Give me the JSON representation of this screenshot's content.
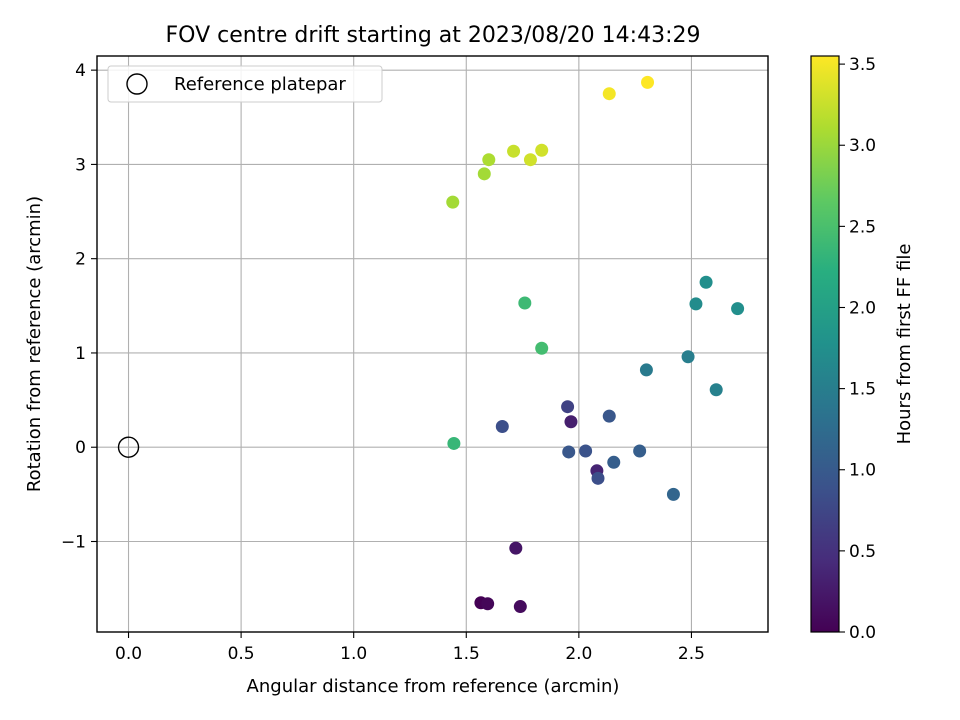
{
  "chart_data": {
    "type": "scatter",
    "title": "FOV centre drift starting at 2023/08/20 14:43:29",
    "xlabel": "Angular distance from reference (arcmin)",
    "ylabel": "Rotation from reference (arcmin)",
    "xlim": [
      -0.14,
      2.84
    ],
    "ylim": [
      -1.96,
      4.15
    ],
    "xticks": [
      0.0,
      0.5,
      1.0,
      1.5,
      2.0,
      2.5
    ],
    "xtick_labels": [
      "0.0",
      "0.5",
      "1.0",
      "1.5",
      "2.0",
      "2.5"
    ],
    "yticks": [
      -1,
      0,
      1,
      2,
      3,
      4
    ],
    "ytick_labels": [
      "−1",
      "0",
      "1",
      "2",
      "3",
      "4"
    ],
    "grid": true,
    "legend": {
      "placement": "upper-left",
      "entries": [
        {
          "label": "Reference platepar",
          "marker": "open-circle"
        }
      ]
    },
    "reference_point": {
      "x": 0.0,
      "y": 0.0
    },
    "colorbar": {
      "label": "Hours from first FF file",
      "range": [
        0.0,
        3.55
      ],
      "ticks": [
        0.0,
        0.5,
        1.0,
        1.5,
        2.0,
        2.5,
        3.0,
        3.5
      ],
      "tick_labels": [
        "0.0",
        "0.5",
        "1.0",
        "1.5",
        "2.0",
        "2.5",
        "3.0",
        "3.5"
      ],
      "colormap": "viridis"
    },
    "points": [
      {
        "x": 1.565,
        "y": -1.65,
        "c": 0.0
      },
      {
        "x": 1.595,
        "y": -1.66,
        "c": 0.05
      },
      {
        "x": 1.74,
        "y": -1.69,
        "c": 0.1
      },
      {
        "x": 1.72,
        "y": -1.07,
        "c": 0.2
      },
      {
        "x": 2.08,
        "y": -0.25,
        "c": 0.35
      },
      {
        "x": 1.965,
        "y": 0.27,
        "c": 0.3
      },
      {
        "x": 1.95,
        "y": 0.43,
        "c": 0.7
      },
      {
        "x": 1.66,
        "y": 0.22,
        "c": 0.85
      },
      {
        "x": 1.955,
        "y": -0.05,
        "c": 0.95
      },
      {
        "x": 2.03,
        "y": -0.04,
        "c": 0.9
      },
      {
        "x": 2.085,
        "y": -0.33,
        "c": 0.85
      },
      {
        "x": 2.155,
        "y": -0.16,
        "c": 1.05
      },
      {
        "x": 2.135,
        "y": 0.33,
        "c": 0.95
      },
      {
        "x": 2.27,
        "y": -0.04,
        "c": 1.05
      },
      {
        "x": 2.42,
        "y": -0.5,
        "c": 1.15
      },
      {
        "x": 2.3,
        "y": 0.82,
        "c": 1.45
      },
      {
        "x": 2.485,
        "y": 0.96,
        "c": 1.5
      },
      {
        "x": 2.61,
        "y": 0.61,
        "c": 1.55
      },
      {
        "x": 2.52,
        "y": 1.52,
        "c": 1.7
      },
      {
        "x": 2.565,
        "y": 1.75,
        "c": 1.75
      },
      {
        "x": 2.705,
        "y": 1.47,
        "c": 1.75
      },
      {
        "x": 1.445,
        "y": 0.04,
        "c": 2.35
      },
      {
        "x": 1.76,
        "y": 1.53,
        "c": 2.4
      },
      {
        "x": 1.835,
        "y": 1.05,
        "c": 2.45
      },
      {
        "x": 1.44,
        "y": 2.6,
        "c": 3.05
      },
      {
        "x": 1.58,
        "y": 2.9,
        "c": 3.05
      },
      {
        "x": 1.6,
        "y": 3.05,
        "c": 3.1
      },
      {
        "x": 1.71,
        "y": 3.14,
        "c": 3.25
      },
      {
        "x": 1.785,
        "y": 3.05,
        "c": 3.3
      },
      {
        "x": 1.835,
        "y": 3.15,
        "c": 3.3
      },
      {
        "x": 2.135,
        "y": 3.75,
        "c": 3.5
      },
      {
        "x": 2.305,
        "y": 3.87,
        "c": 3.55
      }
    ]
  }
}
